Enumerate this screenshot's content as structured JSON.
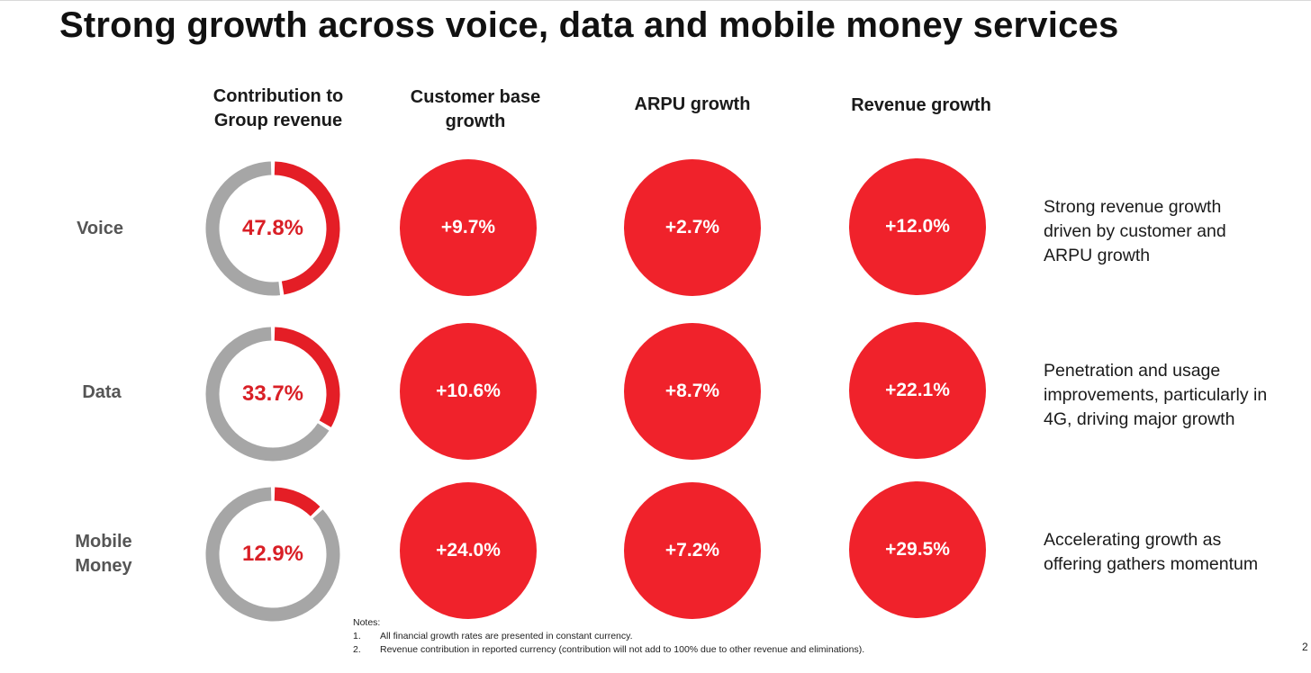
{
  "title": "Strong growth across voice, data and mobile money services",
  "headers": {
    "contribution": [
      "Contribution to",
      "Group revenue"
    ],
    "customer_base": [
      "Customer base",
      "growth"
    ],
    "arpu": "ARPU growth",
    "revenue": "Revenue growth"
  },
  "rows": [
    {
      "label": [
        "Voice"
      ],
      "contribution": "47.8%",
      "contribution_value": 47.8,
      "customer_base_growth": "+9.7%",
      "arpu_growth": "+2.7%",
      "revenue_growth": "+12.0%",
      "description": [
        "Strong revenue growth",
        "driven by customer and",
        "ARPU growth"
      ]
    },
    {
      "label": [
        "Data"
      ],
      "contribution": "33.7%",
      "contribution_value": 33.7,
      "customer_base_growth": "+10.6%",
      "arpu_growth": "+8.7%",
      "revenue_growth": "+22.1%",
      "description": [
        "Penetration and usage",
        "improvements, particularly in",
        "4G, driving major growth"
      ]
    },
    {
      "label": [
        "Mobile",
        "Money"
      ],
      "contribution": "12.9%",
      "contribution_value": 12.9,
      "customer_base_growth": "+24.0%",
      "arpu_growth": "+7.2%",
      "revenue_growth": "+29.5%",
      "description": [
        "Accelerating growth as",
        "offering gathers momentum"
      ]
    }
  ],
  "notes": {
    "heading": "Notes:",
    "items": [
      {
        "num": "1.",
        "text": "All financial growth rates are presented in constant currency."
      },
      {
        "num": "2.",
        "text": "Revenue contribution in reported currency (contribution will not add to 100% due to other revenue and eliminations)."
      }
    ]
  },
  "page_number": "2",
  "colors": {
    "accent_red": "#f0222b",
    "donut_red": "#e41e26",
    "donut_grey": "#a6a6a6",
    "value_red": "#d91f26"
  }
}
